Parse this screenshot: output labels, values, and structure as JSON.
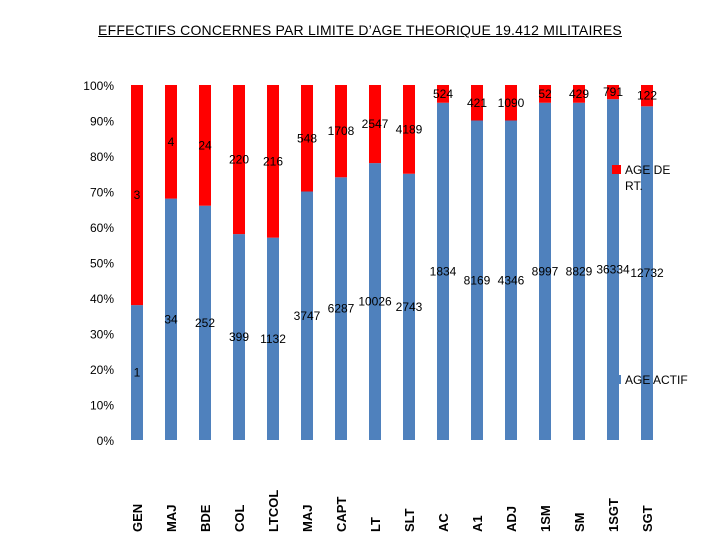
{
  "title": "EFFECTIFS CONCERNES PAR LIMITE D’AGE THEORIQUE  19.412 MILITAIRES",
  "chart_data": {
    "type": "bar",
    "stacked": true,
    "percent": true,
    "categories": [
      "GEN",
      "MAJ",
      "BDE",
      "COL",
      "LTCOL",
      "MAJ",
      "CAPT",
      "LT",
      "SLT",
      "AC",
      "A1",
      "ADJ",
      "1SM",
      "SM",
      "1SGT",
      "SGT"
    ],
    "series": [
      {
        "name": "AGE ACTIF",
        "color": "#4f81bd",
        "values": [
          38,
          68,
          66,
          58,
          57,
          70,
          74,
          78,
          75,
          95,
          90,
          90,
          95,
          95,
          96,
          94
        ],
        "labels": [
          "1",
          "34",
          "252",
          "399",
          "1132",
          "3747",
          "6287",
          "10026",
          "2743",
          "1834",
          "8169",
          "4346",
          "8997",
          "8829",
          "36334",
          "12732"
        ]
      },
      {
        "name": "AGE DE RT.",
        "color": "#ff0000",
        "values": [
          62,
          32,
          34,
          42,
          43,
          30,
          26,
          22,
          25,
          5,
          10,
          10,
          5,
          5,
          4,
          6
        ],
        "labels": [
          "3",
          "4",
          "24",
          "220",
          "216",
          "548",
          "1708",
          "2547",
          "4189",
          "524",
          "421",
          "1090",
          "52",
          "429",
          "791",
          "122"
        ]
      }
    ],
    "yticks": [
      "0%",
      "10%",
      "20%",
      "30%",
      "40%",
      "50%",
      "60%",
      "70%",
      "80%",
      "90%",
      "100%"
    ],
    "ylim": [
      0,
      100
    ],
    "legend_position": "right"
  }
}
